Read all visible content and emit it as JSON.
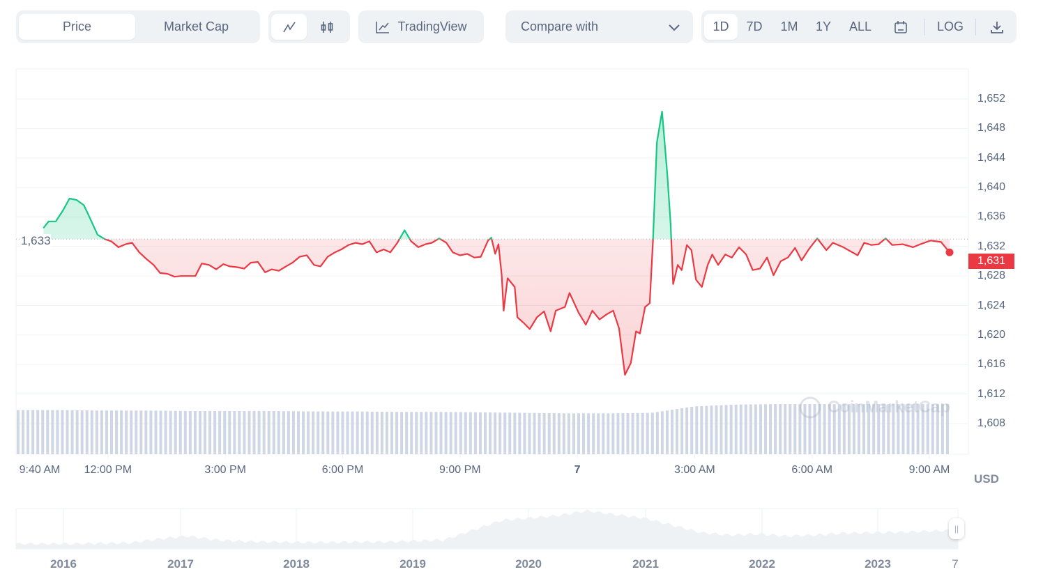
{
  "toolbar": {
    "type_tabs": [
      {
        "label": "Price",
        "active": true
      },
      {
        "label": "Market Cap",
        "active": false
      }
    ],
    "chart_style": [
      {
        "icon": "line-chart-icon",
        "active": true
      },
      {
        "icon": "candlestick-icon",
        "active": false
      }
    ],
    "tradingview_label": "TradingView",
    "compare_label": "Compare with",
    "ranges": [
      {
        "label": "1D",
        "active": true
      },
      {
        "label": "7D"
      },
      {
        "label": "1M"
      },
      {
        "label": "1Y"
      },
      {
        "label": "ALL"
      }
    ],
    "log_label": "LOG"
  },
  "colors": {
    "up": "#16c784",
    "down": "#ea3943",
    "volume": "#cfd6e4",
    "grid": "#eff2f5",
    "text": "#58667e"
  },
  "watermark": "CoinMarketCap",
  "currency": "USD",
  "baseline_label": "1,633",
  "current_price_label": "1,631",
  "chart_data": {
    "type": "line",
    "baseline": 1633,
    "ylim": [
      1604,
      1656
    ],
    "yticks": [
      "1,652",
      "1,648",
      "1,644",
      "1,640",
      "1,636",
      "1,632",
      "1,628",
      "1,624",
      "1,620",
      "1,616",
      "1,612",
      "1,608"
    ],
    "ytick_values": [
      1652,
      1648,
      1644,
      1640,
      1636,
      1632,
      1628,
      1624,
      1620,
      1616,
      1612,
      1608
    ],
    "xticks": [
      {
        "label": "9:40 AM",
        "t": "09:40"
      },
      {
        "label": "12:00 PM",
        "t": "12:00"
      },
      {
        "label": "3:00 PM",
        "t": "15:00"
      },
      {
        "label": "6:00 PM",
        "t": "18:00"
      },
      {
        "label": "9:00 PM",
        "t": "21:00"
      },
      {
        "label": "7",
        "t": "24:00"
      },
      {
        "label": "3:00 AM",
        "t": "27:00"
      },
      {
        "label": "6:00 AM",
        "t": "30:00"
      },
      {
        "label": "9:00 AM",
        "t": "33:00"
      }
    ],
    "series": [
      {
        "points": [
          [
            "10:21",
            1634.5
          ],
          [
            "10:29",
            1635.4
          ],
          [
            "10:40",
            1635.4
          ],
          [
            "10:51",
            1636.9
          ],
          [
            "11:01",
            1638.5
          ],
          [
            "11:12",
            1638.3
          ],
          [
            "11:23",
            1637.6
          ],
          [
            "11:33",
            1635.7
          ],
          [
            "11:44",
            1633.6
          ],
          [
            "11:55",
            1633.0
          ],
          [
            "12:05",
            1632.7
          ],
          [
            "12:16",
            1631.9
          ],
          [
            "12:27",
            1632.3
          ],
          [
            "12:37",
            1632.5
          ],
          [
            "12:48",
            1631.2
          ],
          [
            "12:59",
            1630.3
          ],
          [
            "13:10",
            1629.5
          ],
          [
            "13:20",
            1628.4
          ],
          [
            "13:31",
            1628.3
          ],
          [
            "13:42",
            1627.9
          ],
          [
            "13:52",
            1628.0
          ],
          [
            "14:03",
            1628.0
          ],
          [
            "14:14",
            1628.0
          ],
          [
            "14:24",
            1629.7
          ],
          [
            "14:35",
            1629.5
          ],
          [
            "14:46",
            1628.9
          ],
          [
            "14:57",
            1629.6
          ],
          [
            "15:07",
            1629.3
          ],
          [
            "15:18",
            1629.2
          ],
          [
            "15:29",
            1629.0
          ],
          [
            "15:39",
            1629.8
          ],
          [
            "15:50",
            1629.9
          ],
          [
            "16:01",
            1628.5
          ],
          [
            "16:11",
            1628.9
          ],
          [
            "16:22",
            1628.7
          ],
          [
            "16:33",
            1629.3
          ],
          [
            "16:43",
            1629.8
          ],
          [
            "16:54",
            1630.6
          ],
          [
            "17:05",
            1630.8
          ],
          [
            "17:16",
            1629.5
          ],
          [
            "17:26",
            1629.3
          ],
          [
            "17:37",
            1630.6
          ],
          [
            "17:48",
            1631.2
          ],
          [
            "17:58",
            1631.6
          ],
          [
            "18:09",
            1632.2
          ],
          [
            "18:20",
            1632.5
          ],
          [
            "18:30",
            1632.3
          ],
          [
            "18:41",
            1632.7
          ],
          [
            "18:52",
            1631.2
          ],
          [
            "19:03",
            1631.6
          ],
          [
            "19:13",
            1631.2
          ],
          [
            "19:24",
            1632.5
          ],
          [
            "19:35",
            1634.2
          ],
          [
            "19:45",
            1632.7
          ],
          [
            "19:56",
            1631.9
          ],
          [
            "20:07",
            1632.3
          ],
          [
            "20:17",
            1632.5
          ],
          [
            "20:28",
            1633.1
          ],
          [
            "20:39",
            1632.5
          ],
          [
            "20:49",
            1631.2
          ],
          [
            "21:00",
            1630.8
          ],
          [
            "21:11",
            1631.0
          ],
          [
            "21:22",
            1630.5
          ],
          [
            "21:32",
            1630.6
          ],
          [
            "21:43",
            1632.8
          ],
          [
            "21:48",
            1633.2
          ],
          [
            "21:54",
            1631.0
          ],
          [
            "21:59",
            1632.3
          ],
          [
            "22:04",
            1628.1
          ],
          [
            "22:07",
            1623.3
          ],
          [
            "22:13",
            1627.7
          ],
          [
            "22:24",
            1626.5
          ],
          [
            "22:28",
            1622.4
          ],
          [
            "22:37",
            1621.7
          ],
          [
            "22:47",
            1620.8
          ],
          [
            "22:58",
            1622.4
          ],
          [
            "23:09",
            1623.2
          ],
          [
            "23:19",
            1620.5
          ],
          [
            "23:27",
            1623.3
          ],
          [
            "23:41",
            1623.8
          ],
          [
            "23:48",
            1625.7
          ],
          [
            "00:02",
            1623.0
          ],
          [
            "00:13",
            1621.4
          ],
          [
            "00:23",
            1623.3
          ],
          [
            "00:34",
            1622.1
          ],
          [
            "00:45",
            1622.8
          ],
          [
            "00:55",
            1623.3
          ],
          [
            "01:04",
            1620.9
          ],
          [
            "01:13",
            1614.6
          ],
          [
            "01:22",
            1616.2
          ],
          [
            "01:30",
            1620.5
          ],
          [
            "01:36",
            1620.2
          ],
          [
            "01:44",
            1623.8
          ],
          [
            "01:51",
            1624.3
          ],
          [
            "01:56",
            1632.8
          ],
          [
            "02:02",
            1646.1
          ],
          [
            "02:10",
            1650.3
          ],
          [
            "02:18",
            1641.8
          ],
          [
            "02:23",
            1635.2
          ],
          [
            "02:27",
            1626.9
          ],
          [
            "02:34",
            1629.5
          ],
          [
            "02:40",
            1628.8
          ],
          [
            "02:48",
            1632.2
          ],
          [
            "02:55",
            1631.5
          ],
          [
            "03:02",
            1627.5
          ],
          [
            "03:11",
            1626.5
          ],
          [
            "03:20",
            1629.5
          ],
          [
            "03:27",
            1630.9
          ],
          [
            "03:36",
            1629.5
          ],
          [
            "03:47",
            1630.9
          ],
          [
            "03:57",
            1630.5
          ],
          [
            "04:08",
            1631.9
          ],
          [
            "04:19",
            1630.9
          ],
          [
            "04:29",
            1628.8
          ],
          [
            "04:40",
            1629.0
          ],
          [
            "04:51",
            1630.5
          ],
          [
            "05:01",
            1628.1
          ],
          [
            "05:12",
            1630.0
          ],
          [
            "05:23",
            1630.5
          ],
          [
            "05:34",
            1631.8
          ],
          [
            "05:44",
            1630.1
          ],
          [
            "05:55",
            1631.6
          ],
          [
            "06:08",
            1633.1
          ],
          [
            "06:22",
            1631.5
          ],
          [
            "06:32",
            1632.5
          ],
          [
            "06:48",
            1631.9
          ],
          [
            "07:10",
            1630.8
          ],
          [
            "07:20",
            1632.5
          ],
          [
            "07:31",
            1632.2
          ],
          [
            "07:42",
            1632.3
          ],
          [
            "07:53",
            1633.1
          ],
          [
            "08:03",
            1632.2
          ],
          [
            "08:19",
            1632.3
          ],
          [
            "08:35",
            1631.9
          ],
          [
            "08:46",
            1632.3
          ],
          [
            "09:02",
            1632.8
          ],
          [
            "09:18",
            1632.6
          ],
          [
            "09:31",
            1631.2
          ]
        ]
      }
    ],
    "volume_levels": [
      0.96,
      0.96,
      0.95,
      0.95,
      0.94,
      0.94,
      0.94,
      0.93,
      0.93,
      0.92,
      0.92,
      0.91,
      0.9,
      0.89,
      0.89,
      0.9,
      1.04,
      1.08,
      1.09,
      1.09,
      1.09,
      1.09,
      1.09
    ],
    "navigator": {
      "year_labels": [
        "2016",
        "2017",
        "2018",
        "2019",
        "2020",
        "2021",
        "2022",
        "2023",
        "7"
      ],
      "levels": [
        0.02,
        0.02,
        0.02,
        0.03,
        0.04,
        0.12,
        0.18,
        0.1,
        0.07,
        0.06,
        0.05,
        0.05,
        0.06,
        0.06,
        0.08,
        0.1,
        0.3,
        0.5,
        0.55,
        0.6,
        0.7,
        0.62,
        0.55,
        0.4,
        0.25,
        0.2,
        0.22,
        0.18,
        0.2,
        0.24,
        0.25,
        0.26,
        0.28,
        0.3
      ]
    }
  }
}
